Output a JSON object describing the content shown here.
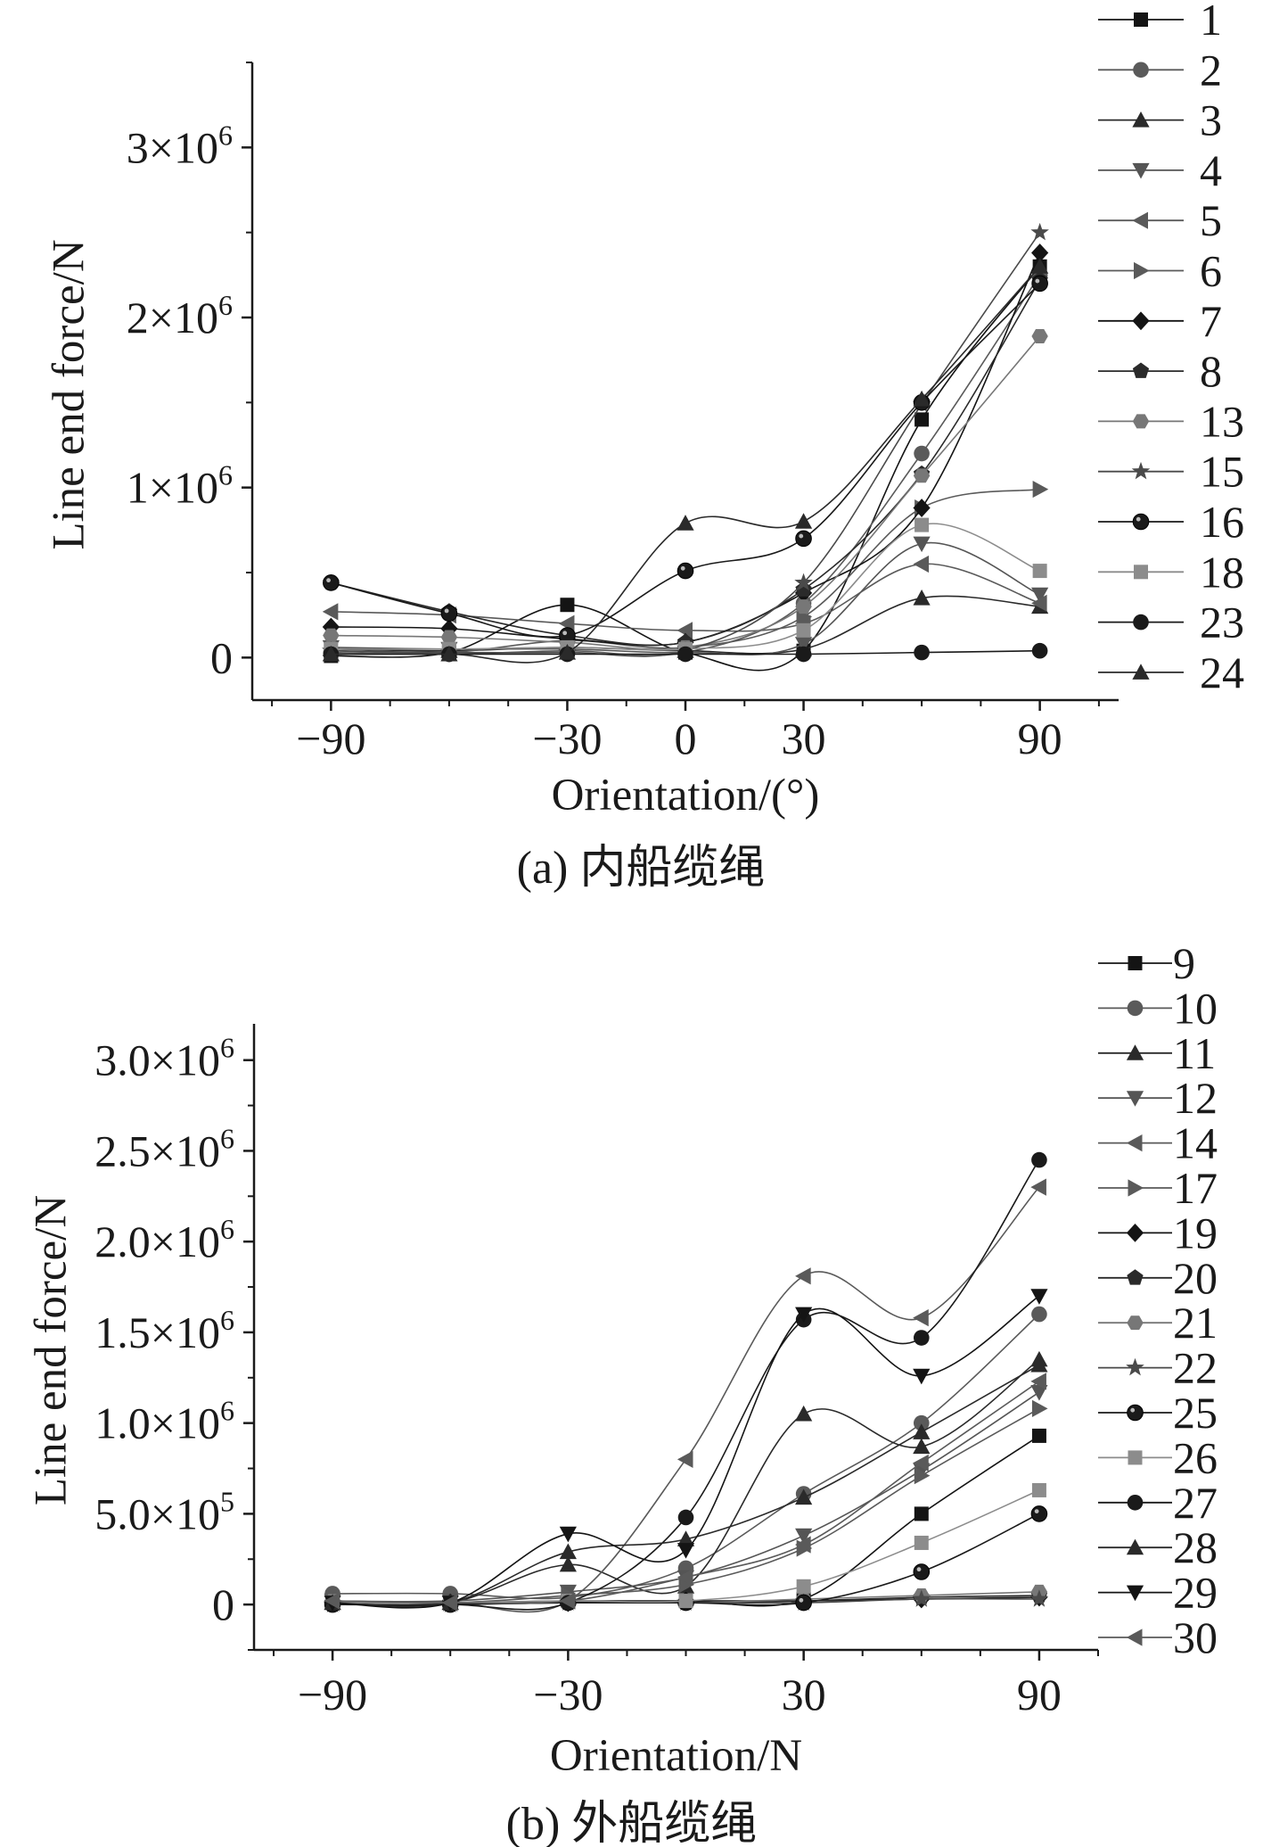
{
  "chart_data": [
    {
      "type": "line",
      "caption": "(a) 内船缆绳",
      "xlabel": "Orientation/(°)",
      "ylabel": "Line end force/N",
      "x": [
        -90,
        -60,
        -30,
        0,
        30,
        60,
        90
      ],
      "xlim": [
        -110,
        110
      ],
      "ylim": [
        -250000,
        3500000
      ],
      "xticks": [
        -90,
        -30,
        0,
        30,
        90
      ],
      "xtick_labels": [
        "−90",
        "−30",
        "0",
        "30",
        "90"
      ],
      "yticks": [
        0,
        1000000,
        2000000,
        3000000
      ],
      "ytick_labels": [
        {
          "base": "0",
          "exp": ""
        },
        {
          "base": "1×10",
          "exp": "6"
        },
        {
          "base": "2×10",
          "exp": "6"
        },
        {
          "base": "3×10",
          "exp": "6"
        }
      ],
      "legend_position": "right",
      "series": [
        {
          "name": "1",
          "marker": "square",
          "color": "#141414",
          "values": [
            10000,
            30000,
            310000,
            30000,
            40000,
            1400000,
            2300000
          ]
        },
        {
          "name": "2",
          "marker": "circle",
          "color": "#5a5a5a",
          "values": [
            30000,
            20000,
            40000,
            30000,
            320000,
            1200000,
            2250000
          ]
        },
        {
          "name": "3",
          "marker": "triangle-up",
          "color": "#2a2a2a",
          "values": [
            50000,
            40000,
            60000,
            40000,
            50000,
            350000,
            300000
          ]
        },
        {
          "name": "4",
          "marker": "triangle-down",
          "color": "#555555",
          "values": [
            60000,
            50000,
            50000,
            30000,
            80000,
            670000,
            370000
          ]
        },
        {
          "name": "5",
          "marker": "triangle-left",
          "color": "#5a5a5a",
          "values": [
            270000,
            250000,
            200000,
            160000,
            200000,
            550000,
            320000
          ]
        },
        {
          "name": "6",
          "marker": "triangle-right",
          "color": "#5a5a5a",
          "values": [
            40000,
            30000,
            100000,
            60000,
            240000,
            880000,
            990000
          ]
        },
        {
          "name": "7",
          "marker": "diamond",
          "color": "#141414",
          "values": [
            180000,
            170000,
            110000,
            90000,
            380000,
            880000,
            2380000
          ]
        },
        {
          "name": "8",
          "marker": "pentagon",
          "color": "#2a2a2a",
          "values": [
            440000,
            270000,
            130000,
            90000,
            400000,
            1080000,
            2220000
          ]
        },
        {
          "name": "13",
          "marker": "hexagon",
          "color": "#777777",
          "values": [
            130000,
            120000,
            90000,
            60000,
            300000,
            1070000,
            1890000
          ]
        },
        {
          "name": "15",
          "marker": "star",
          "color": "#4a4a4a",
          "values": [
            40000,
            30000,
            30000,
            40000,
            440000,
            1490000,
            2500000
          ]
        },
        {
          "name": "16",
          "marker": "ball",
          "color": "#1a1a1a",
          "values": [
            440000,
            260000,
            130000,
            510000,
            700000,
            1500000,
            2200000
          ]
        },
        {
          "name": "18",
          "marker": "square",
          "color": "#8c8c8c",
          "values": [
            50000,
            50000,
            60000,
            50000,
            160000,
            780000,
            510000
          ]
        },
        {
          "name": "23",
          "marker": "circle",
          "color": "#1a1a1a",
          "values": [
            20000,
            20000,
            20000,
            20000,
            20000,
            30000,
            40000
          ]
        },
        {
          "name": "24",
          "marker": "triangle-up",
          "color": "#2a2a2a",
          "values": [
            20000,
            20000,
            30000,
            790000,
            800000,
            1520000,
            2300000
          ]
        }
      ]
    },
    {
      "type": "line",
      "caption": "(b) 外船缆绳",
      "xlabel": "Orientation/N",
      "ylabel": "Line end force/N",
      "x": [
        -90,
        -60,
        -30,
        0,
        30,
        60,
        90
      ],
      "xlim": [
        -110,
        105
      ],
      "ylim": [
        -250000,
        3200000
      ],
      "xticks": [
        -90,
        -30,
        30,
        90
      ],
      "xtick_labels": [
        "−90",
        "−30",
        "30",
        "90"
      ],
      "yticks": [
        0,
        500000,
        1000000,
        1500000,
        2000000,
        2500000,
        3000000
      ],
      "ytick_labels": [
        {
          "base": "0",
          "exp": ""
        },
        {
          "base": "5.0×10",
          "exp": "5"
        },
        {
          "base": "1.0×10",
          "exp": "6"
        },
        {
          "base": "1.5×10",
          "exp": "6"
        },
        {
          "base": "2.0×10",
          "exp": "6"
        },
        {
          "base": "2.5×10",
          "exp": "6"
        },
        {
          "base": "3.0×10",
          "exp": "6"
        }
      ],
      "legend_position": "right",
      "series": [
        {
          "name": "9",
          "marker": "square",
          "color": "#141414",
          "values": [
            10000,
            10000,
            20000,
            20000,
            30000,
            500000,
            930000
          ]
        },
        {
          "name": "10",
          "marker": "circle",
          "color": "#5a5a5a",
          "values": [
            60000,
            60000,
            40000,
            200000,
            610000,
            1000000,
            1600000
          ]
        },
        {
          "name": "11",
          "marker": "triangle-up",
          "color": "#2a2a2a",
          "values": [
            10000,
            10000,
            220000,
            100000,
            1050000,
            870000,
            1350000
          ]
        },
        {
          "name": "12",
          "marker": "triangle-down",
          "color": "#555555",
          "values": [
            20000,
            20000,
            70000,
            150000,
            380000,
            740000,
            1170000
          ]
        },
        {
          "name": "14",
          "marker": "triangle-left",
          "color": "#5a5a5a",
          "values": [
            10000,
            10000,
            20000,
            800000,
            1810000,
            1580000,
            2300000
          ]
        },
        {
          "name": "17",
          "marker": "triangle-right",
          "color": "#5a5a5a",
          "values": [
            20000,
            10000,
            50000,
            110000,
            310000,
            710000,
            1080000
          ]
        },
        {
          "name": "19",
          "marker": "diamond",
          "color": "#141414",
          "values": [
            10000,
            10000,
            10000,
            20000,
            20000,
            30000,
            40000
          ]
        },
        {
          "name": "20",
          "marker": "pentagon",
          "color": "#2a2a2a",
          "values": [
            10000,
            10000,
            10000,
            10000,
            20000,
            40000,
            50000
          ]
        },
        {
          "name": "21",
          "marker": "hexagon",
          "color": "#777777",
          "values": [
            20000,
            10000,
            20000,
            10000,
            30000,
            50000,
            70000
          ]
        },
        {
          "name": "22",
          "marker": "star",
          "color": "#4a4a4a",
          "values": [
            0,
            0,
            10000,
            10000,
            10000,
            30000,
            30000
          ]
        },
        {
          "name": "25",
          "marker": "ball",
          "color": "#1a1a1a",
          "values": [
            0,
            0,
            10000,
            10000,
            10000,
            180000,
            500000
          ]
        },
        {
          "name": "26",
          "marker": "square",
          "color": "#8c8c8c",
          "values": [
            10000,
            10000,
            20000,
            20000,
            100000,
            340000,
            630000
          ]
        },
        {
          "name": "27",
          "marker": "circle",
          "color": "#1a1a1a",
          "values": [
            0,
            0,
            10000,
            480000,
            1570000,
            1470000,
            2450000
          ]
        },
        {
          "name": "28",
          "marker": "triangle-up",
          "color": "#2a2a2a",
          "values": [
            10000,
            10000,
            290000,
            360000,
            590000,
            950000,
            1320000
          ]
        },
        {
          "name": "29",
          "marker": "triangle-down",
          "color": "#141414",
          "values": [
            10000,
            10000,
            390000,
            300000,
            1600000,
            1260000,
            1700000
          ]
        },
        {
          "name": "30",
          "marker": "triangle-left",
          "color": "#5a5a5a",
          "values": [
            20000,
            10000,
            20000,
            150000,
            330000,
            780000,
            1230000
          ]
        }
      ]
    }
  ]
}
